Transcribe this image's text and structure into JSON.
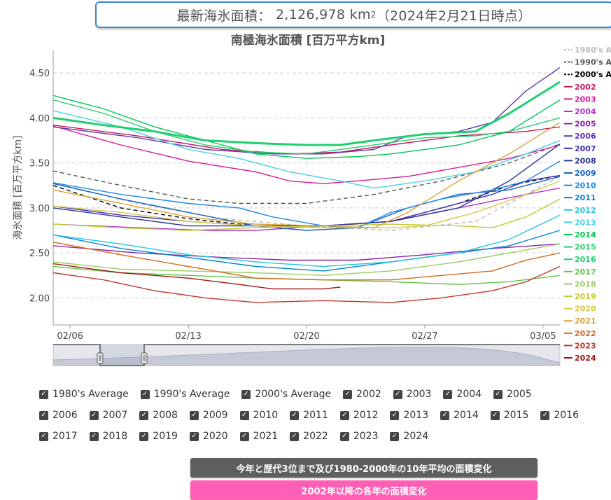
{
  "banner": {
    "label": "最新海氷面積：",
    "value": "2,126,978 km",
    "sup": "2",
    "date": "（2024年2月21日時点）"
  },
  "chart_data": {
    "type": "line",
    "title": "南極海氷面積 [百万平方km]",
    "ylabel": "海氷面積 [百万平方km]",
    "ylim": [
      1.7,
      4.75
    ],
    "yticks": [
      2.0,
      2.5,
      3.0,
      3.5,
      4.0,
      4.5
    ],
    "ytick_labels": [
      "2.00",
      "2.50",
      "3.00",
      "3.50",
      "4.00",
      "4.50"
    ],
    "xlim": [
      0,
      30
    ],
    "xticks": [
      1,
      8,
      15,
      22,
      29
    ],
    "xtick_labels": [
      "02/06",
      "02/13",
      "02/20",
      "02/27",
      "03/05"
    ],
    "grid": true,
    "legend_position": "right",
    "series": [
      {
        "name": "1980's Average",
        "color": "#bbbbbb",
        "dash": true,
        "pts": [
          [
            0,
            3.28
          ],
          [
            5,
            3.05
          ],
          [
            10,
            2.88
          ],
          [
            15,
            2.8
          ],
          [
            20,
            2.75
          ],
          [
            25,
            2.85
          ],
          [
            28,
            3.15
          ],
          [
            30,
            3.35
          ]
        ]
      },
      {
        "name": "1990's Average",
        "color": "#555555",
        "dash": true,
        "pts": [
          [
            0,
            3.41
          ],
          [
            4,
            3.25
          ],
          [
            8,
            3.1
          ],
          [
            11,
            3.05
          ],
          [
            15,
            3.05
          ],
          [
            19,
            3.15
          ],
          [
            23,
            3.3
          ],
          [
            27,
            3.5
          ],
          [
            30,
            3.71
          ]
        ]
      },
      {
        "name": "2000's Average",
        "color": "#000000",
        "dash": true,
        "pts": [
          [
            0,
            3.25
          ],
          [
            4,
            3.0
          ],
          [
            8,
            2.88
          ],
          [
            12,
            2.8
          ],
          [
            16,
            2.8
          ],
          [
            20,
            2.85
          ],
          [
            24,
            3.05
          ],
          [
            27,
            3.25
          ],
          [
            30,
            3.36
          ]
        ]
      },
      {
        "name": "2002",
        "color": "#c2185b",
        "pts": [
          [
            0,
            3.92
          ],
          [
            5,
            3.8
          ],
          [
            10,
            3.65
          ],
          [
            14,
            3.6
          ],
          [
            17,
            3.62
          ],
          [
            20,
            3.7
          ],
          [
            24,
            3.8
          ],
          [
            28,
            3.85
          ],
          [
            30,
            3.9
          ]
        ]
      },
      {
        "name": "2003",
        "color": "#d81b9a",
        "pts": [
          [
            0,
            3.91
          ],
          [
            4,
            3.7
          ],
          [
            8,
            3.52
          ],
          [
            12,
            3.4
          ],
          [
            14,
            3.3
          ],
          [
            16,
            3.27
          ],
          [
            18,
            3.3
          ],
          [
            21,
            3.35
          ],
          [
            24,
            3.45
          ],
          [
            27,
            3.55
          ],
          [
            30,
            3.7
          ]
        ]
      },
      {
        "name": "2004",
        "color": "#b02fd6",
        "pts": [
          [
            0,
            2.82
          ],
          [
            5,
            2.78
          ],
          [
            9,
            2.75
          ],
          [
            12,
            2.75
          ],
          [
            16,
            2.8
          ],
          [
            20,
            2.85
          ],
          [
            24,
            3.0
          ],
          [
            28,
            3.15
          ],
          [
            30,
            3.22
          ]
        ]
      },
      {
        "name": "2005",
        "color": "#8e24aa",
        "pts": [
          [
            0,
            2.58
          ],
          [
            5,
            2.5
          ],
          [
            10,
            2.45
          ],
          [
            14,
            2.42
          ],
          [
            18,
            2.42
          ],
          [
            22,
            2.48
          ],
          [
            26,
            2.55
          ],
          [
            30,
            2.6
          ]
        ]
      },
      {
        "name": "2006",
        "color": "#5e35b1",
        "pts": [
          [
            0,
            3.9
          ],
          [
            5,
            3.78
          ],
          [
            9,
            3.65
          ],
          [
            13,
            3.6
          ],
          [
            16,
            3.6
          ],
          [
            19,
            3.65
          ],
          [
            21,
            3.8
          ],
          [
            24,
            3.85
          ],
          [
            26,
            3.95
          ],
          [
            28,
            4.3
          ],
          [
            30,
            4.56
          ]
        ]
      },
      {
        "name": "2007",
        "color": "#3f2fb5",
        "pts": [
          [
            0,
            3.02
          ],
          [
            4,
            2.92
          ],
          [
            8,
            2.85
          ],
          [
            12,
            2.8
          ],
          [
            16,
            2.8
          ],
          [
            20,
            2.85
          ],
          [
            23,
            3.0
          ],
          [
            26,
            3.15
          ],
          [
            28,
            3.3
          ],
          [
            30,
            3.36
          ]
        ]
      },
      {
        "name": "2008",
        "color": "#283593",
        "pts": [
          [
            0,
            3.0
          ],
          [
            4,
            2.9
          ],
          [
            8,
            2.8
          ],
          [
            12,
            2.8
          ],
          [
            16,
            2.8
          ],
          [
            20,
            2.85
          ],
          [
            24,
            3.0
          ],
          [
            27,
            3.3
          ],
          [
            30,
            3.71
          ]
        ]
      },
      {
        "name": "2009",
        "color": "#1565c0",
        "pts": [
          [
            0,
            3.27
          ],
          [
            4,
            3.1
          ],
          [
            8,
            2.95
          ],
          [
            12,
            2.8
          ],
          [
            15,
            2.75
          ],
          [
            18,
            2.78
          ],
          [
            21,
            3.0
          ],
          [
            24,
            3.15
          ],
          [
            27,
            3.2
          ],
          [
            30,
            3.35
          ]
        ]
      },
      {
        "name": "2010",
        "color": "#1e88e5",
        "pts": [
          [
            0,
            3.28
          ],
          [
            4,
            3.15
          ],
          [
            8,
            3.05
          ],
          [
            11,
            3.0
          ],
          [
            13,
            2.9
          ],
          [
            16,
            2.8
          ],
          [
            18,
            2.78
          ],
          [
            20,
            2.95
          ],
          [
            23,
            3.1
          ],
          [
            26,
            3.2
          ],
          [
            28,
            3.3
          ],
          [
            30,
            3.52
          ]
        ]
      },
      {
        "name": "2011",
        "color": "#0288d1",
        "pts": [
          [
            0,
            2.7
          ],
          [
            4,
            2.55
          ],
          [
            8,
            2.45
          ],
          [
            12,
            2.35
          ],
          [
            16,
            2.3
          ],
          [
            20,
            2.4
          ],
          [
            24,
            2.5
          ],
          [
            27,
            2.58
          ],
          [
            30,
            2.75
          ]
        ]
      },
      {
        "name": "2012",
        "color": "#26c6da",
        "pts": [
          [
            0,
            2.7
          ],
          [
            4,
            2.6
          ],
          [
            8,
            2.48
          ],
          [
            12,
            2.4
          ],
          [
            16,
            2.35
          ],
          [
            20,
            2.4
          ],
          [
            24,
            2.5
          ],
          [
            27,
            2.65
          ],
          [
            30,
            2.92
          ]
        ]
      },
      {
        "name": "2013",
        "color": "#4dd0e1",
        "pts": [
          [
            0,
            4.08
          ],
          [
            4,
            3.9
          ],
          [
            8,
            3.65
          ],
          [
            11,
            3.55
          ],
          [
            14,
            3.4
          ],
          [
            17,
            3.3
          ],
          [
            19,
            3.22
          ],
          [
            22,
            3.3
          ],
          [
            25,
            3.4
          ],
          [
            28,
            3.6
          ],
          [
            30,
            3.75
          ]
        ]
      },
      {
        "name": "2014",
        "color": "#00c853",
        "pts": [
          [
            0,
            4.25
          ],
          [
            3,
            4.1
          ],
          [
            6,
            3.9
          ],
          [
            9,
            3.75
          ],
          [
            12,
            3.6
          ],
          [
            15,
            3.55
          ],
          [
            18,
            3.57
          ],
          [
            20,
            3.6
          ],
          [
            24,
            3.7
          ],
          [
            27,
            3.85
          ],
          [
            30,
            4.2
          ]
        ]
      },
      {
        "name": "2015",
        "color": "#2ecc71",
        "pts": [
          [
            0,
            4.2
          ],
          [
            3,
            4.05
          ],
          [
            6,
            3.85
          ],
          [
            9,
            3.7
          ],
          [
            12,
            3.62
          ],
          [
            15,
            3.6
          ],
          [
            19,
            3.7
          ],
          [
            22,
            3.78
          ],
          [
            25,
            3.8
          ],
          [
            27,
            3.85
          ],
          [
            30,
            4.0
          ]
        ]
      },
      {
        "name": "2016",
        "color": "#1ed06f",
        "w": 3,
        "pts": [
          [
            0,
            4.0
          ],
          [
            3,
            3.92
          ],
          [
            6,
            3.85
          ],
          [
            9,
            3.75
          ],
          [
            12,
            3.72
          ],
          [
            15,
            3.7
          ],
          [
            17,
            3.7
          ],
          [
            19,
            3.75
          ],
          [
            22,
            3.82
          ],
          [
            25,
            3.85
          ],
          [
            27,
            4.05
          ],
          [
            30,
            4.4
          ]
        ]
      },
      {
        "name": "2017",
        "color": "#5fc640",
        "pts": [
          [
            0,
            2.35
          ],
          [
            4,
            2.28
          ],
          [
            8,
            2.25
          ],
          [
            12,
            2.22
          ],
          [
            16,
            2.2
          ],
          [
            20,
            2.18
          ],
          [
            24,
            2.15
          ],
          [
            27,
            2.18
          ],
          [
            30,
            2.25
          ]
        ]
      },
      {
        "name": "2018",
        "color": "#9ccc65",
        "pts": [
          [
            0,
            2.4
          ],
          [
            4,
            2.32
          ],
          [
            8,
            2.3
          ],
          [
            12,
            2.28
          ],
          [
            16,
            2.25
          ],
          [
            20,
            2.3
          ],
          [
            24,
            2.4
          ],
          [
            27,
            2.5
          ],
          [
            30,
            2.6
          ]
        ]
      },
      {
        "name": "2019",
        "color": "#c0ca33",
        "pts": [
          [
            0,
            2.82
          ],
          [
            4,
            2.78
          ],
          [
            8,
            2.75
          ],
          [
            12,
            2.78
          ],
          [
            16,
            2.8
          ],
          [
            20,
            2.82
          ],
          [
            24,
            2.8
          ],
          [
            26,
            2.78
          ],
          [
            28,
            2.9
          ],
          [
            30,
            3.1
          ]
        ]
      },
      {
        "name": "2020",
        "color": "#d4c94a",
        "pts": [
          [
            0,
            3.02
          ],
          [
            4,
            2.95
          ],
          [
            8,
            2.85
          ],
          [
            12,
            2.8
          ],
          [
            16,
            2.78
          ],
          [
            20,
            2.78
          ],
          [
            22,
            2.8
          ],
          [
            25,
            2.95
          ],
          [
            28,
            3.15
          ],
          [
            30,
            3.3
          ]
        ]
      },
      {
        "name": "2021",
        "color": "#d9a23a",
        "pts": [
          [
            0,
            3.2
          ],
          [
            4,
            3.05
          ],
          [
            8,
            2.9
          ],
          [
            12,
            2.82
          ],
          [
            16,
            2.8
          ],
          [
            19,
            2.78
          ],
          [
            21,
            2.95
          ],
          [
            24,
            3.3
          ],
          [
            27,
            3.6
          ],
          [
            30,
            3.95
          ]
        ]
      },
      {
        "name": "2022",
        "color": "#d2691e",
        "pts": [
          [
            0,
            2.62
          ],
          [
            4,
            2.48
          ],
          [
            8,
            2.35
          ],
          [
            12,
            2.22
          ],
          [
            16,
            2.2
          ],
          [
            20,
            2.2
          ],
          [
            23,
            2.25
          ],
          [
            26,
            2.3
          ],
          [
            28,
            2.42
          ],
          [
            30,
            2.5
          ]
        ]
      },
      {
        "name": "2023",
        "color": "#c0392b",
        "pts": [
          [
            0,
            2.28
          ],
          [
            3,
            2.2
          ],
          [
            6,
            2.08
          ],
          [
            9,
            2.0
          ],
          [
            12,
            1.95
          ],
          [
            16,
            1.97
          ],
          [
            20,
            1.95
          ],
          [
            23,
            2.0
          ],
          [
            26,
            2.08
          ],
          [
            28,
            2.18
          ],
          [
            30,
            2.35
          ]
        ]
      },
      {
        "name": "2024",
        "color": "#a31515",
        "pts": [
          [
            0,
            2.38
          ],
          [
            4,
            2.28
          ],
          [
            8,
            2.22
          ],
          [
            11,
            2.15
          ],
          [
            13,
            2.1
          ],
          [
            16,
            2.1
          ],
          [
            17,
            2.12
          ]
        ]
      }
    ]
  },
  "checkboxes": [
    [
      "1980's Average",
      "1990's Average",
      "2000's Average",
      "2002",
      "2003",
      "2004",
      "2005"
    ],
    [
      "2006",
      "2007",
      "2008",
      "2009",
      "2010",
      "2011",
      "2012",
      "2013",
      "2014",
      "2015",
      "2016"
    ],
    [
      "2017",
      "2018",
      "2019",
      "2020",
      "2021",
      "2022",
      "2023",
      "2024"
    ]
  ],
  "buttons": {
    "top10": "今年と歴代3位まで及び1980-2000年の10年平均の面積変化",
    "yearly": "2002年以降の各年の面積変化"
  }
}
